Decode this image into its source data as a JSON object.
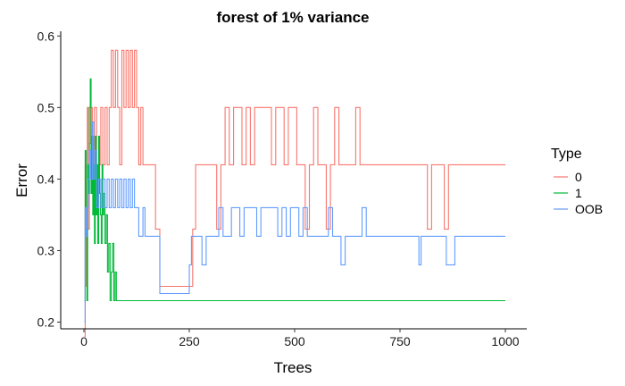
{
  "chart_data": {
    "type": "line",
    "title": "forest of 1% variance",
    "xlabel": "Trees",
    "ylabel": "Error",
    "xlim": [
      0,
      1000
    ],
    "ylim": [
      0.15,
      0.6
    ],
    "x_ticks": [
      0,
      250,
      500,
      750,
      1000
    ],
    "y_ticks": [
      0.2,
      0.3,
      0.4,
      0.5,
      0.6
    ],
    "x_tick_labels": [
      "0",
      "250",
      "500",
      "750",
      "1000"
    ],
    "y_tick_labels": [
      "0.2",
      "0.3",
      "0.4",
      "0.5",
      "0.6"
    ],
    "grid": false,
    "legend": {
      "title": "Type",
      "placement": "right",
      "entries": [
        "0",
        "1",
        "OOB"
      ]
    },
    "series": [
      {
        "name": "0",
        "color": "#F8766D",
        "x": [
          1,
          3,
          5,
          8,
          10,
          13,
          16,
          20,
          25,
          30,
          35,
          40,
          45,
          50,
          55,
          60,
          65,
          70,
          75,
          80,
          85,
          90,
          95,
          100,
          105,
          110,
          115,
          120,
          125,
          130,
          135,
          140,
          145,
          150,
          155,
          160,
          165,
          170,
          175,
          180,
          190,
          200,
          210,
          220,
          230,
          240,
          250,
          258,
          265,
          275,
          285,
          295,
          305,
          315,
          325,
          335,
          345,
          355,
          365,
          375,
          385,
          395,
          405,
          415,
          425,
          435,
          445,
          455,
          465,
          475,
          485,
          495,
          505,
          515,
          525,
          535,
          545,
          555,
          565,
          575,
          585,
          595,
          605,
          615,
          625,
          635,
          645,
          655,
          665,
          675,
          685,
          695,
          705,
          715,
          725,
          735,
          745,
          755,
          765,
          775,
          785,
          795,
          805,
          815,
          825,
          835,
          845,
          855,
          865,
          875,
          900,
          925,
          950,
          975,
          1000
        ],
        "y": [
          0.18,
          0.42,
          0.25,
          0.5,
          0.33,
          0.45,
          0.5,
          0.42,
          0.5,
          0.42,
          0.42,
          0.5,
          0.42,
          0.5,
          0.42,
          0.5,
          0.58,
          0.5,
          0.58,
          0.5,
          0.42,
          0.58,
          0.5,
          0.58,
          0.5,
          0.58,
          0.5,
          0.58,
          0.5,
          0.42,
          0.5,
          0.42,
          0.42,
          0.42,
          0.42,
          0.42,
          0.42,
          0.33,
          0.33,
          0.25,
          0.25,
          0.25,
          0.25,
          0.25,
          0.25,
          0.25,
          0.25,
          0.33,
          0.42,
          0.42,
          0.42,
          0.42,
          0.42,
          0.33,
          0.42,
          0.5,
          0.42,
          0.5,
          0.5,
          0.42,
          0.5,
          0.42,
          0.5,
          0.5,
          0.5,
          0.5,
          0.42,
          0.5,
          0.5,
          0.42,
          0.5,
          0.5,
          0.42,
          0.42,
          0.33,
          0.42,
          0.5,
          0.42,
          0.42,
          0.33,
          0.42,
          0.5,
          0.42,
          0.42,
          0.42,
          0.42,
          0.5,
          0.42,
          0.42,
          0.42,
          0.42,
          0.42,
          0.42,
          0.42,
          0.42,
          0.42,
          0.42,
          0.42,
          0.42,
          0.42,
          0.42,
          0.42,
          0.42,
          0.33,
          0.42,
          0.42,
          0.42,
          0.33,
          0.42,
          0.42,
          0.42,
          0.42,
          0.42,
          0.42,
          0.42
        ]
      },
      {
        "name": "1",
        "color": "#00BA38",
        "x": [
          1,
          3,
          5,
          7,
          9,
          11,
          13,
          15,
          17,
          19,
          21,
          23,
          25,
          27,
          29,
          31,
          33,
          35,
          37,
          39,
          41,
          43,
          45,
          47,
          50,
          53,
          56,
          59,
          62,
          65,
          68,
          71,
          74,
          77,
          80,
          85,
          90,
          100,
          150,
          200,
          250,
          300,
          400,
          500,
          600,
          700,
          800,
          900,
          1000
        ],
        "y": [
          0.23,
          0.44,
          0.33,
          0.23,
          0.42,
          0.38,
          0.5,
          0.54,
          0.38,
          0.46,
          0.35,
          0.42,
          0.31,
          0.46,
          0.35,
          0.42,
          0.31,
          0.46,
          0.38,
          0.35,
          0.31,
          0.42,
          0.35,
          0.38,
          0.31,
          0.35,
          0.27,
          0.31,
          0.23,
          0.27,
          0.31,
          0.23,
          0.27,
          0.23,
          0.23,
          0.23,
          0.23,
          0.23,
          0.23,
          0.23,
          0.23,
          0.23,
          0.23,
          0.23,
          0.23,
          0.23,
          0.23,
          0.23,
          0.23
        ]
      },
      {
        "name": "OOB",
        "color": "#619CFF",
        "x": [
          1,
          3,
          5,
          8,
          10,
          13,
          16,
          20,
          23,
          26,
          30,
          35,
          40,
          45,
          50,
          55,
          60,
          65,
          70,
          75,
          80,
          85,
          90,
          95,
          100,
          105,
          110,
          115,
          120,
          125,
          130,
          135,
          140,
          145,
          150,
          155,
          160,
          165,
          170,
          175,
          180,
          200,
          220,
          240,
          250,
          255,
          262,
          270,
          280,
          290,
          300,
          310,
          320,
          330,
          340,
          350,
          360,
          370,
          380,
          390,
          400,
          410,
          420,
          430,
          440,
          450,
          460,
          470,
          480,
          490,
          500,
          510,
          520,
          530,
          540,
          550,
          560,
          570,
          580,
          590,
          600,
          610,
          620,
          630,
          640,
          650,
          660,
          670,
          680,
          690,
          700,
          720,
          740,
          760,
          780,
          795,
          800,
          820,
          840,
          855,
          860,
          880,
          900,
          950,
          1000
        ],
        "y": [
          0.2,
          0.36,
          0.32,
          0.36,
          0.4,
          0.44,
          0.4,
          0.48,
          0.4,
          0.44,
          0.36,
          0.4,
          0.36,
          0.4,
          0.36,
          0.4,
          0.36,
          0.4,
          0.36,
          0.4,
          0.36,
          0.4,
          0.36,
          0.4,
          0.36,
          0.4,
          0.36,
          0.4,
          0.36,
          0.36,
          0.32,
          0.32,
          0.36,
          0.32,
          0.32,
          0.32,
          0.32,
          0.32,
          0.32,
          0.32,
          0.24,
          0.24,
          0.24,
          0.24,
          0.28,
          0.32,
          0.32,
          0.32,
          0.28,
          0.32,
          0.32,
          0.32,
          0.36,
          0.32,
          0.32,
          0.36,
          0.36,
          0.32,
          0.36,
          0.36,
          0.36,
          0.32,
          0.36,
          0.36,
          0.36,
          0.36,
          0.32,
          0.36,
          0.32,
          0.36,
          0.36,
          0.32,
          0.36,
          0.32,
          0.32,
          0.32,
          0.32,
          0.32,
          0.36,
          0.32,
          0.32,
          0.28,
          0.32,
          0.32,
          0.32,
          0.32,
          0.36,
          0.32,
          0.32,
          0.32,
          0.32,
          0.32,
          0.32,
          0.32,
          0.32,
          0.28,
          0.32,
          0.32,
          0.32,
          0.32,
          0.28,
          0.32,
          0.32,
          0.32,
          0.32
        ]
      }
    ]
  }
}
